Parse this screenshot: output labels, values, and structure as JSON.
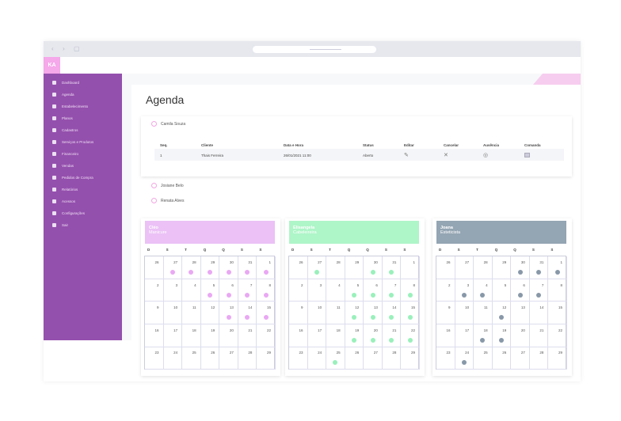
{
  "browser": {
    "back_icon": "‹",
    "forward_icon": "›",
    "tabs_icon": "▢"
  },
  "logo": "KA",
  "sidebar": {
    "items": [
      {
        "label": "Dashboard",
        "icon": "dashboard-icon"
      },
      {
        "label": "Agenda",
        "icon": "calendar-icon"
      },
      {
        "label": "Estabelecimento",
        "icon": "store-icon"
      },
      {
        "label": "Planos",
        "icon": "clipboard-icon"
      },
      {
        "label": "Cadastros",
        "icon": "user-icon"
      },
      {
        "label": "Serviços e Produtos",
        "icon": "briefcase-icon"
      },
      {
        "label": "Financeiro",
        "icon": "money-icon"
      },
      {
        "label": "Vendas",
        "icon": "bag-icon"
      },
      {
        "label": "Pedidos de Compra",
        "icon": "cart-icon"
      },
      {
        "label": "Relatórios",
        "icon": "printer-icon"
      },
      {
        "label": "Acessos",
        "icon": "key-icon"
      },
      {
        "label": "Configurações",
        "icon": "gear-icon"
      },
      {
        "label": "Sair",
        "icon": "exit-icon"
      }
    ]
  },
  "page_title": "Agenda",
  "professionals": [
    "Camila Souza",
    "Josiane Belo",
    "Renata Alves"
  ],
  "table": {
    "headers": [
      "Seq.",
      "Cliente",
      "Data e Hora",
      "Status",
      "Editar",
      "Cancelar",
      "Ausência",
      "Comanda"
    ],
    "rows": [
      {
        "seq": "1",
        "cliente": "Thais Ferreira",
        "data": "26/01/2021 11:00",
        "status": "Aberto"
      }
    ]
  },
  "weekdays": [
    "D",
    "S",
    "T",
    "Q",
    "Q",
    "S",
    "S"
  ],
  "calendar_days": [
    [
      "26",
      "27",
      "28",
      "29",
      "30",
      "31",
      "1"
    ],
    [
      "2",
      "3",
      "4",
      "5",
      "6",
      "7",
      "8"
    ],
    [
      "9",
      "10",
      "11",
      "12",
      "13",
      "14",
      "15"
    ],
    [
      "16",
      "17",
      "18",
      "19",
      "20",
      "21",
      "22"
    ],
    [
      "23",
      "24",
      "25",
      "26",
      "27",
      "28",
      "29"
    ]
  ],
  "calendars": [
    {
      "name": "Cléo",
      "role": "Manicure",
      "color": "#ebc1f6",
      "dot": "#e9a8f3",
      "marked": [
        [
          0,
          1
        ],
        [
          0,
          2
        ],
        [
          0,
          3
        ],
        [
          0,
          4
        ],
        [
          0,
          5
        ],
        [
          0,
          6
        ],
        [
          1,
          3
        ],
        [
          1,
          4
        ],
        [
          1,
          5
        ],
        [
          1,
          6
        ],
        [
          2,
          4
        ],
        [
          2,
          5
        ],
        [
          2,
          6
        ]
      ]
    },
    {
      "name": "Elisangela",
      "role": "Cabeleireira",
      "color": "#aef5c8",
      "dot": "#9af0bb",
      "marked": [
        [
          0,
          1
        ],
        [
          0,
          4
        ],
        [
          0,
          5
        ],
        [
          1,
          3
        ],
        [
          1,
          4
        ],
        [
          1,
          5
        ],
        [
          1,
          6
        ],
        [
          2,
          3
        ],
        [
          2,
          4
        ],
        [
          2,
          5
        ],
        [
          2,
          6
        ],
        [
          3,
          3
        ],
        [
          3,
          4
        ],
        [
          3,
          5
        ],
        [
          3,
          6
        ],
        [
          4,
          2
        ]
      ]
    },
    {
      "name": "Joana",
      "role": "Esteticista",
      "color": "#94a5b3",
      "dot": "#8898a8",
      "marked": [
        [
          0,
          4
        ],
        [
          0,
          5
        ],
        [
          0,
          6
        ],
        [
          1,
          1
        ],
        [
          1,
          2
        ],
        [
          1,
          4
        ],
        [
          1,
          5
        ],
        [
          2,
          3
        ],
        [
          3,
          2
        ],
        [
          3,
          3
        ],
        [
          4,
          1
        ]
      ]
    }
  ]
}
